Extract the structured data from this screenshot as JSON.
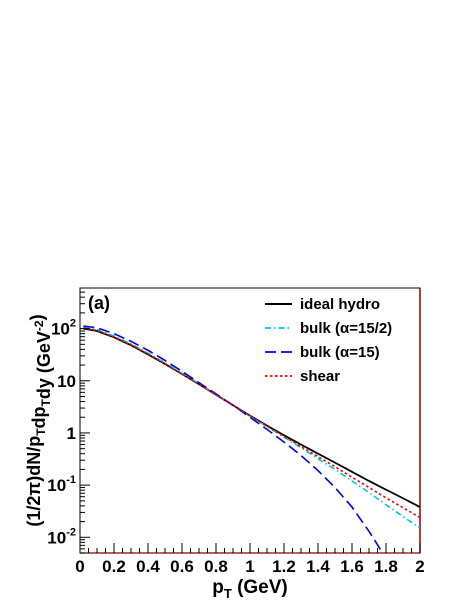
{
  "chart_data": {
    "type": "line",
    "panel_label": "(a)",
    "xlabel": {
      "main": "p",
      "sub": "T",
      "tail": " (GeV)"
    },
    "ylabel": {
      "parts": [
        {
          "t": "(1/2",
          "s": "normal"
        },
        {
          "t": "π",
          "s": "normal"
        },
        {
          "t": ")dN/p",
          "s": "normal"
        },
        {
          "t": "T",
          "s": "sub"
        },
        {
          "t": "dp",
          "s": "normal"
        },
        {
          "t": "T",
          "s": "sub"
        },
        {
          "t": "dy (GeV",
          "s": "normal"
        },
        {
          "t": "-2",
          "s": "sup"
        },
        {
          "t": ")",
          "s": "normal"
        }
      ]
    },
    "x_range": [
      0,
      2
    ],
    "y_range": [
      0.005,
      600
    ],
    "y_scale": "log",
    "grid": false,
    "legend_position": "top-right",
    "x_ticks": [
      "0",
      "0.2",
      "0.4",
      "0.6",
      "0.8",
      "1",
      "1.2",
      "1.4",
      "1.6",
      "1.8",
      "2"
    ],
    "y_ticks": [
      {
        "value": 0.01,
        "base": "10",
        "exp": "-2"
      },
      {
        "value": 0.1,
        "base": "10",
        "exp": "-1"
      },
      {
        "value": 1,
        "base": "1",
        "exp": ""
      },
      {
        "value": 10,
        "base": "10",
        "exp": ""
      },
      {
        "value": 100,
        "base": "10",
        "exp": "2"
      }
    ],
    "series": [
      {
        "name": "ideal hydro",
        "color": "#000000",
        "dash": "",
        "x": [
          0.02,
          0.1,
          0.2,
          0.3,
          0.4,
          0.5,
          0.6,
          0.7,
          0.8,
          0.9,
          1.0,
          1.1,
          1.2,
          1.3,
          1.4,
          1.5,
          1.6,
          1.7,
          1.8,
          1.9,
          2.0
        ],
        "y": [
          100,
          90,
          68,
          48,
          32,
          21,
          13.5,
          8.6,
          5.4,
          3.4,
          2.15,
          1.38,
          0.9,
          0.6,
          0.4,
          0.27,
          0.18,
          0.12,
          0.082,
          0.056,
          0.038
        ]
      },
      {
        "name": "bulk (α=15/2)",
        "color": "#00cccc",
        "dash": "6 3 1.5 3",
        "x": [
          0.02,
          0.1,
          0.2,
          0.3,
          0.4,
          0.5,
          0.6,
          0.7,
          0.8,
          0.9,
          1.0,
          1.1,
          1.2,
          1.3,
          1.4,
          1.5,
          1.6,
          1.7,
          1.8,
          1.9,
          2.0
        ],
        "y": [
          106,
          96,
          72,
          51,
          34,
          22,
          14,
          8.8,
          5.5,
          3.4,
          2.1,
          1.32,
          0.83,
          0.52,
          0.32,
          0.2,
          0.12,
          0.072,
          0.042,
          0.025,
          0.015
        ]
      },
      {
        "name": "bulk (α=15)",
        "color": "#0000ee",
        "dash": "11 5",
        "x": [
          0.02,
          0.1,
          0.2,
          0.3,
          0.4,
          0.5,
          0.6,
          0.7,
          0.8,
          0.9,
          1.0,
          1.1,
          1.2,
          1.3,
          1.4,
          1.5,
          1.6,
          1.7,
          1.75,
          1.78,
          1.8
        ],
        "y": [
          112,
          104,
          80,
          57,
          38.5,
          24.5,
          15.2,
          9.2,
          5.6,
          3.4,
          2.0,
          1.17,
          0.67,
          0.37,
          0.19,
          0.09,
          0.038,
          0.013,
          0.0072,
          0.005,
          0.004
        ]
      },
      {
        "name": "shear",
        "color": "#ee0000",
        "dash": "2.5 2.5",
        "x": [
          0.02,
          0.1,
          0.2,
          0.3,
          0.4,
          0.5,
          0.6,
          0.7,
          0.8,
          0.9,
          1.0,
          1.1,
          1.2,
          1.3,
          1.4,
          1.5,
          1.6,
          1.7,
          1.8,
          1.9,
          2.0
        ],
        "y": [
          102,
          92,
          69,
          49,
          32.5,
          21.2,
          13.6,
          8.6,
          5.4,
          3.4,
          2.12,
          1.35,
          0.86,
          0.55,
          0.35,
          0.225,
          0.142,
          0.09,
          0.057,
          0.037,
          0.024
        ]
      }
    ]
  }
}
